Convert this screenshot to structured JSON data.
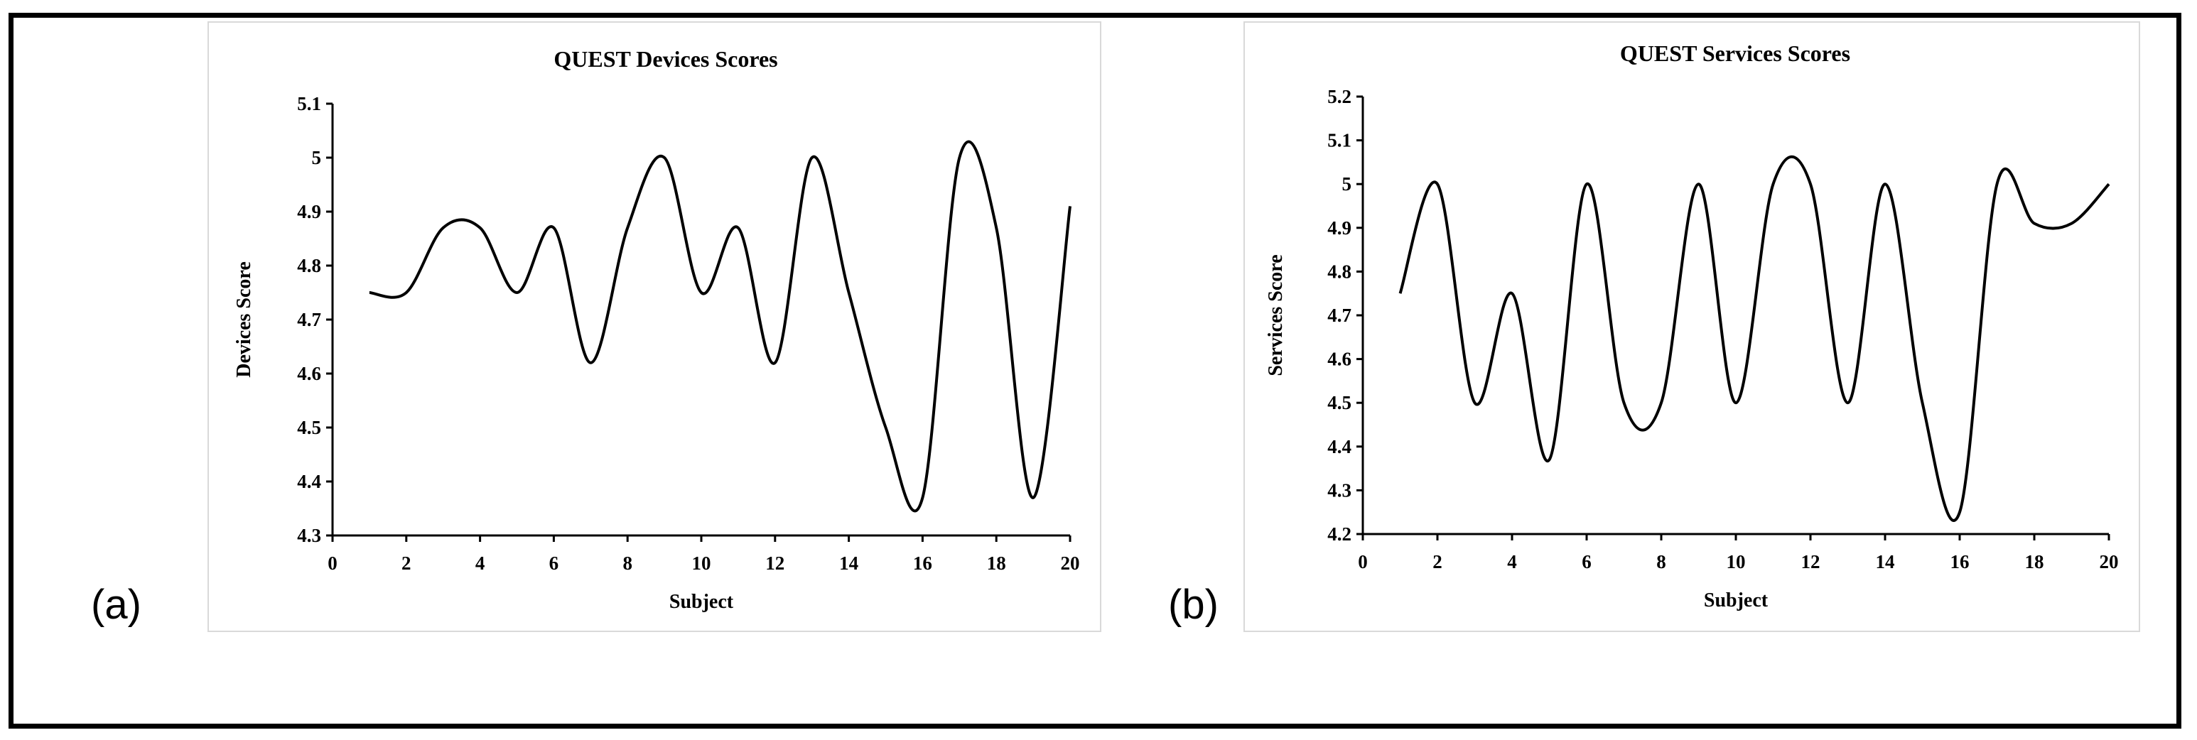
{
  "figure": {
    "label_a": "(a)",
    "label_b": "(b)"
  },
  "chart_data": [
    {
      "type": "line",
      "title": "QUEST Devices Scores",
      "xlabel": "Subject",
      "ylabel": "Devices Score",
      "xlim": [
        0,
        20
      ],
      "ylim": [
        4.3,
        5.1
      ],
      "xticks": [
        0,
        2,
        4,
        6,
        8,
        10,
        12,
        14,
        16,
        18,
        20
      ],
      "xtick_labels": [
        "0",
        "2",
        "4",
        "6",
        "8",
        "10",
        "12",
        "14",
        "16",
        "18",
        "20"
      ],
      "yticks": [
        4.3,
        4.4,
        4.5,
        4.6,
        4.7,
        4.8,
        4.9,
        5.0,
        5.1
      ],
      "ytick_labels": [
        "4.3",
        "4.4",
        "4.5",
        "4.6",
        "4.7",
        "4.8",
        "4.9",
        "5",
        "5.1"
      ],
      "smooth": true,
      "grid": false,
      "series": [
        {
          "x": [
            1,
            2,
            3,
            4,
            5,
            6,
            7,
            8,
            9,
            10,
            11,
            12,
            13,
            14,
            15,
            16,
            17,
            18,
            19,
            20
          ],
          "values": [
            4.75,
            4.75,
            4.87,
            4.87,
            4.75,
            4.87,
            4.62,
            4.87,
            5.0,
            4.75,
            4.87,
            4.62,
            5.0,
            4.75,
            4.5,
            4.37,
            5.0,
            4.87,
            4.37,
            4.91
          ]
        }
      ]
    },
    {
      "type": "line",
      "title": "QUEST Services Scores",
      "xlabel": "Subject",
      "ylabel": "Services Score",
      "xlim": [
        0,
        20
      ],
      "ylim": [
        4.2,
        5.2
      ],
      "xticks": [
        0,
        2,
        4,
        6,
        8,
        10,
        12,
        14,
        16,
        18,
        20
      ],
      "xtick_labels": [
        "0",
        "2",
        "4",
        "6",
        "8",
        "10",
        "12",
        "14",
        "16",
        "18",
        "20"
      ],
      "yticks": [
        4.2,
        4.3,
        4.4,
        4.5,
        4.6,
        4.7,
        4.8,
        4.9,
        5.0,
        5.1,
        5.2
      ],
      "ytick_labels": [
        "4.2",
        "4.3",
        "4.4",
        "4.5",
        "4.6",
        "4.7",
        "4.8",
        "4.9",
        "5",
        "5.1",
        "5.2"
      ],
      "smooth": true,
      "grid": false,
      "series": [
        {
          "x": [
            1,
            2,
            3,
            4,
            5,
            6,
            7,
            8,
            9,
            10,
            11,
            12,
            13,
            14,
            15,
            16,
            17,
            18,
            19,
            20
          ],
          "values": [
            4.75,
            5.0,
            4.5,
            4.75,
            4.37,
            5.0,
            4.5,
            4.5,
            5.0,
            4.5,
            5.0,
            5.0,
            4.5,
            5.0,
            4.5,
            4.25,
            5.0,
            4.91,
            4.91,
            5.0
          ]
        }
      ]
    }
  ]
}
